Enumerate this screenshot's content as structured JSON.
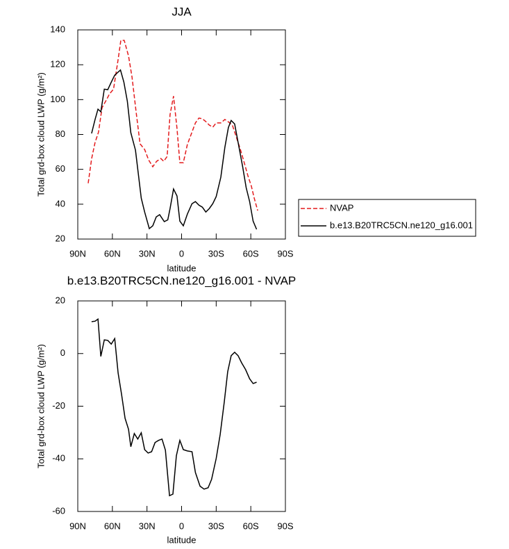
{
  "chart_data": [
    {
      "type": "line",
      "title": "JJA",
      "xlabel": "latitude",
      "ylabel": "Total grd-box cloud LWP (g/m²)",
      "xlim": [
        90,
        -90
      ],
      "xticks": [
        {
          "value": 90,
          "label": "90N"
        },
        {
          "value": 60,
          "label": "60N"
        },
        {
          "value": 30,
          "label": "30N"
        },
        0,
        {
          "value": -30,
          "label": "30S"
        },
        {
          "value": -60,
          "label": "60S"
        },
        {
          "value": -90,
          "label": "90S"
        }
      ],
      "ylim": [
        20,
        140
      ],
      "yticks": [
        20,
        40,
        60,
        80,
        100,
        120,
        140
      ],
      "legend": "right",
      "series": [
        {
          "name": "NVAP",
          "color": "#e31a1c",
          "line_style": "dashed",
          "x": [
            81,
            78,
            75,
            72,
            69,
            65,
            62.5,
            59,
            55,
            52.7,
            49.7,
            46,
            43,
            39.5,
            36,
            32,
            28.6,
            25,
            21.6,
            18,
            15.5,
            12.5,
            10,
            7,
            4,
            1.5,
            -1.5,
            -5,
            -9,
            -12,
            -15,
            -18,
            -21,
            -24,
            -27,
            -30,
            -34,
            -37.5,
            -41,
            -44,
            -47,
            -51,
            -54.5,
            -57.5,
            -60.5,
            -63,
            -66
          ],
          "values": [
            52,
            66,
            75.4,
            81.4,
            95.3,
            100,
            103.3,
            106,
            123,
            134,
            134,
            125,
            113,
            93.3,
            74.6,
            71.4,
            65.4,
            61.5,
            64.6,
            66.2,
            64.6,
            67.4,
            91.4,
            102,
            83.4,
            63.8,
            63.8,
            74.2,
            81.4,
            86.6,
            89.4,
            89,
            87.4,
            85.4,
            84.2,
            86.6,
            86.6,
            88.6,
            87,
            85.4,
            79.4,
            71.4,
            63.4,
            56.3,
            50.3,
            43.5,
            36.3
          ]
        },
        {
          "name": "b.e13.B20TRC5CN.ne120_g16.001",
          "color": "#000000",
          "line_style": "solid",
          "x": [
            78,
            75,
            72.5,
            70,
            67,
            64,
            61,
            58,
            53,
            50,
            47,
            44,
            40,
            35,
            32,
            28,
            25,
            22,
            19,
            15,
            12,
            10,
            7,
            4,
            1.5,
            -1.5,
            -5,
            -9,
            -12,
            -15,
            -18,
            -21,
            -24,
            -27,
            -30,
            -34,
            -37.5,
            -40.6,
            -43,
            -46,
            -49,
            -53,
            -56,
            -59,
            -62,
            -65
          ],
          "values": [
            80.6,
            88.6,
            94.5,
            93,
            106,
            105.7,
            110,
            114,
            117,
            110,
            99,
            81,
            71,
            43.5,
            35.5,
            26,
            27.6,
            32.7,
            34,
            30,
            31,
            37.5,
            48.7,
            44.7,
            30.3,
            27.6,
            34.3,
            40.3,
            41.5,
            39.5,
            38.3,
            35.5,
            37.5,
            40.3,
            44.3,
            55.5,
            72.6,
            84,
            88,
            86,
            75.4,
            61.4,
            49.5,
            41.5,
            30.3,
            25.6
          ]
        }
      ]
    },
    {
      "type": "line",
      "title": "b.e13.B20TRC5CN.ne120_g16.001 - NVAP",
      "xlabel": "latitude",
      "ylabel": "Total grd-box cloud LWP (g/m²)",
      "xlim": [
        90,
        -90
      ],
      "xticks": [
        {
          "value": 90,
          "label": "90N"
        },
        {
          "value": 60,
          "label": "60N"
        },
        {
          "value": 30,
          "label": "30N"
        },
        0,
        {
          "value": -30,
          "label": "30S"
        },
        {
          "value": -60,
          "label": "60S"
        },
        {
          "value": -90,
          "label": "90S"
        }
      ],
      "ylim": [
        -60,
        20
      ],
      "yticks": [
        -60,
        -40,
        -20,
        0,
        20
      ],
      "series": [
        {
          "color": "#000000",
          "line_style": "solid",
          "x": [
            78,
            75,
            72.5,
            70,
            67,
            64,
            61,
            58,
            55,
            52,
            49,
            46,
            44,
            41,
            38,
            35,
            32,
            29,
            26,
            23,
            20,
            17,
            14,
            10.5,
            7.5,
            4.5,
            1.5,
            -1.5,
            -5,
            -9,
            -12,
            -16,
            -19.5,
            -23,
            -26,
            -30,
            -33.5,
            -37,
            -40,
            -43,
            -46,
            -49,
            -52,
            -55.5,
            -59,
            -62,
            -65
          ],
          "values": [
            12.1,
            12.3,
            13.1,
            -1.1,
            5.2,
            5,
            3.6,
            5.7,
            -7.4,
            -15.6,
            -24.6,
            -28.8,
            -35.4,
            -30.4,
            -32.5,
            -30.1,
            -36.5,
            -37.8,
            -37.3,
            -33.8,
            -33,
            -32.5,
            -36.7,
            -54,
            -53.4,
            -38.8,
            -33,
            -36.5,
            -37,
            -37.3,
            -45.2,
            -50.4,
            -51.5,
            -51,
            -47.8,
            -39.9,
            -30.7,
            -18.3,
            -6.9,
            -0.8,
            0.5,
            -0.8,
            -3.5,
            -6.1,
            -9.6,
            -11.4,
            -10.9
          ]
        }
      ]
    }
  ]
}
